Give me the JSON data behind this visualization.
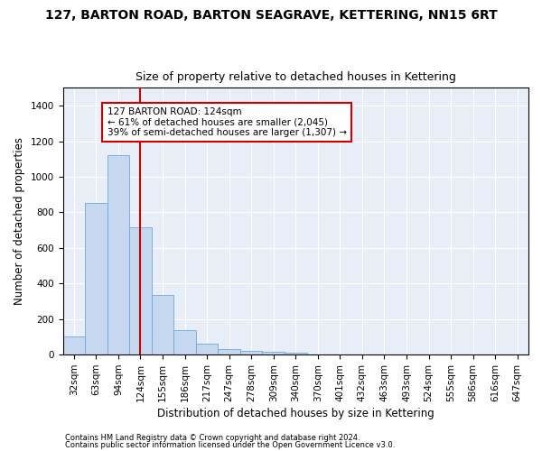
{
  "title": "127, BARTON ROAD, BARTON SEAGRAVE, KETTERING, NN15 6RT",
  "subtitle": "Size of property relative to detached houses in Kettering",
  "xlabel": "Distribution of detached houses by size in Kettering",
  "ylabel": "Number of detached properties",
  "footnote1": "Contains HM Land Registry data © Crown copyright and database right 2024.",
  "footnote2": "Contains public sector information licensed under the Open Government Licence v3.0.",
  "categories": [
    "32sqm",
    "63sqm",
    "94sqm",
    "124sqm",
    "155sqm",
    "186sqm",
    "217sqm",
    "247sqm",
    "278sqm",
    "309sqm",
    "340sqm",
    "370sqm",
    "401sqm",
    "432sqm",
    "463sqm",
    "493sqm",
    "524sqm",
    "555sqm",
    "586sqm",
    "616sqm",
    "647sqm"
  ],
  "bar_heights": [
    100,
    855,
    1120,
    715,
    335,
    140,
    60,
    30,
    20,
    15,
    10,
    0,
    0,
    0,
    0,
    0,
    0,
    0,
    0,
    0,
    0
  ],
  "bar_color": "#c5d8f0",
  "bar_edge_color": "#6fa8d8",
  "background_color": "#e8eef8",
  "grid_color": "#ffffff",
  "red_line_index": 3,
  "red_line_color": "#cc0000",
  "ylim": [
    0,
    1500
  ],
  "yticks": [
    0,
    200,
    400,
    600,
    800,
    1000,
    1200,
    1400
  ],
  "annotation_text": "127 BARTON ROAD: 124sqm\n← 61% of detached houses are smaller (2,045)\n39% of semi-detached houses are larger (1,307) →",
  "annotation_box_color": "#cc0000",
  "title_fontsize": 10,
  "subtitle_fontsize": 9,
  "axis_label_fontsize": 8.5,
  "tick_fontsize": 7.5,
  "annotation_fontsize": 7.5,
  "footnote_fontsize": 6
}
